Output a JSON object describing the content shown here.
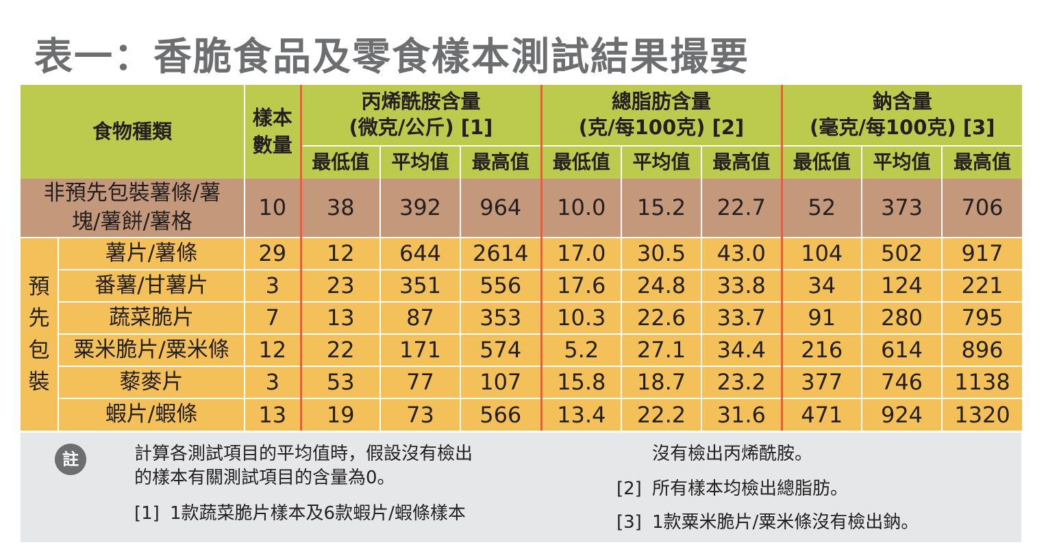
{
  "title": "表一：香脆食品及零食樣本測試結果撮要",
  "table": {
    "food_type_header": "食物種類",
    "sample_count_header": "樣本數量",
    "groups": [
      {
        "name": "丙烯酰胺含量",
        "unit": "(微克/公斤) [1]"
      },
      {
        "name": "總脂肪含量",
        "unit": "(克/每100克) [2]"
      },
      {
        "name": "鈉含量",
        "unit": "(毫克/每100克) [3]"
      }
    ],
    "sub_headers": [
      "最低值",
      "平均值",
      "最高值"
    ],
    "non_prepacked_row": {
      "label": "非預先包裝薯條/薯塊/薯餅/薯格",
      "values": [
        "10",
        "38",
        "392",
        "964",
        "10.0",
        "15.2",
        "22.7",
        "52",
        "373",
        "706"
      ]
    },
    "prepacked_label": "預先包裝",
    "prepacked_rows": [
      {
        "label": "薯片/薯條",
        "values": [
          "29",
          "12",
          "644",
          "2614",
          "17.0",
          "30.5",
          "43.0",
          "104",
          "502",
          "917"
        ]
      },
      {
        "label": "番薯/甘薯片",
        "values": [
          "3",
          "23",
          "351",
          "556",
          "17.6",
          "24.8",
          "33.8",
          "34",
          "124",
          "221"
        ]
      },
      {
        "label": "蔬菜脆片",
        "values": [
          "7",
          "13",
          "87",
          "353",
          "10.3",
          "22.6",
          "33.7",
          "91",
          "280",
          "795"
        ]
      },
      {
        "label": "粟米脆片/粟米條",
        "values": [
          "12",
          "22",
          "171",
          "574",
          "5.2",
          "27.1",
          "34.4",
          "216",
          "614",
          "896"
        ]
      },
      {
        "label": "藜麥片",
        "values": [
          "3",
          "53",
          "77",
          "107",
          "15.8",
          "18.7",
          "23.2",
          "377",
          "746",
          "1138"
        ]
      },
      {
        "label": "蝦片/蝦條",
        "values": [
          "13",
          "19",
          "73",
          "566",
          "13.4",
          "22.2",
          "31.6",
          "471",
          "924",
          "1320"
        ]
      }
    ]
  },
  "notes": {
    "badge": "註",
    "general_line1": "計算各測試項目的平均值時，假設沒有檢出",
    "general_line2": "的樣本有關測試項目的含量為0。",
    "note1_mark": "[1]",
    "note1_text": "1款蔬菜脆片樣本及6款蝦片/蝦條樣本",
    "note1_cont": "沒有檢出丙烯酰胺。",
    "note2_mark": "[2]",
    "note2_text": "所有樣本均檢出總脂肪。",
    "note3_mark": "[3]",
    "note3_text": "1款粟米脆片/粟米條沒有檢出鈉。"
  },
  "colors": {
    "header": "#bccb4e",
    "non_prepacked": "#c4987b",
    "prepacked": "#f4c05a",
    "group_divider": "#ee5a3b",
    "notes_bg": "#e6e7e8",
    "title": "#6d6e70"
  }
}
